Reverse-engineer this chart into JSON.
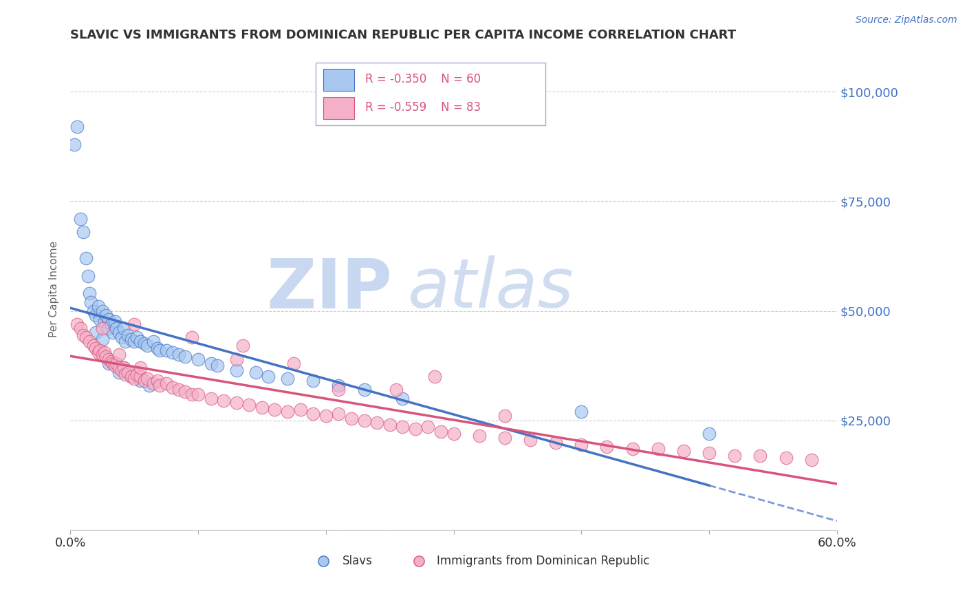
{
  "title": "SLAVIC VS IMMIGRANTS FROM DOMINICAN REPUBLIC PER CAPITA INCOME CORRELATION CHART",
  "source_text": "Source: ZipAtlas.com",
  "ylabel": "Per Capita Income",
  "xlim": [
    0.0,
    0.6
  ],
  "ylim": [
    0,
    110000
  ],
  "ytick_positions": [
    0,
    25000,
    50000,
    75000,
    100000
  ],
  "ytick_labels": [
    "",
    "$25,000",
    "$50,000",
    "$75,000",
    "$100,000"
  ],
  "xtick_positions": [
    0.0,
    0.1,
    0.2,
    0.3,
    0.4,
    0.5,
    0.6
  ],
  "xtick_labels": [
    "0.0%",
    "",
    "",
    "",
    "",
    "",
    "60.0%"
  ],
  "blue_R": -0.35,
  "blue_N": 60,
  "pink_R": -0.559,
  "pink_N": 83,
  "blue_color": "#a8c8f0",
  "pink_color": "#f4b0c8",
  "blue_line_color": "#4472c4",
  "pink_line_color": "#d9547a",
  "axis_label_color": "#4472c4",
  "watermark_ZIP_color": "#c8d8f0",
  "watermark_atlas_color": "#d0ddf0",
  "blue_scatter_x": [
    0.003,
    0.005,
    0.008,
    0.01,
    0.012,
    0.014,
    0.015,
    0.016,
    0.018,
    0.02,
    0.022,
    0.023,
    0.025,
    0.027,
    0.028,
    0.03,
    0.03,
    0.032,
    0.033,
    0.035,
    0.036,
    0.038,
    0.04,
    0.042,
    0.043,
    0.045,
    0.048,
    0.05,
    0.052,
    0.055,
    0.058,
    0.06,
    0.065,
    0.068,
    0.07,
    0.075,
    0.08,
    0.085,
    0.09,
    0.1,
    0.11,
    0.115,
    0.13,
    0.145,
    0.155,
    0.17,
    0.19,
    0.21,
    0.23,
    0.26,
    0.02,
    0.025,
    0.03,
    0.038,
    0.042,
    0.048,
    0.055,
    0.062,
    0.4,
    0.5
  ],
  "blue_scatter_y": [
    88000,
    92000,
    71000,
    68000,
    62000,
    58000,
    54000,
    52000,
    50000,
    49000,
    51000,
    48000,
    50000,
    47500,
    49000,
    48000,
    46000,
    47000,
    45000,
    47500,
    46000,
    45000,
    44000,
    46000,
    43000,
    44500,
    43500,
    43000,
    44000,
    43000,
    42500,
    42000,
    43000,
    41500,
    41000,
    41000,
    40500,
    40000,
    39500,
    39000,
    38000,
    37500,
    36500,
    36000,
    35000,
    34500,
    34000,
    33000,
    32000,
    30000,
    45000,
    43500,
    38000,
    36000,
    37000,
    35000,
    34000,
    33000,
    27000,
    22000
  ],
  "pink_scatter_x": [
    0.005,
    0.008,
    0.01,
    0.012,
    0.015,
    0.018,
    0.02,
    0.022,
    0.023,
    0.025,
    0.027,
    0.028,
    0.03,
    0.032,
    0.033,
    0.035,
    0.036,
    0.038,
    0.04,
    0.042,
    0.043,
    0.045,
    0.048,
    0.05,
    0.052,
    0.055,
    0.058,
    0.06,
    0.065,
    0.068,
    0.07,
    0.075,
    0.08,
    0.085,
    0.09,
    0.095,
    0.1,
    0.11,
    0.12,
    0.13,
    0.14,
    0.15,
    0.16,
    0.17,
    0.18,
    0.19,
    0.2,
    0.21,
    0.22,
    0.23,
    0.24,
    0.25,
    0.26,
    0.27,
    0.28,
    0.29,
    0.3,
    0.32,
    0.34,
    0.36,
    0.38,
    0.4,
    0.42,
    0.44,
    0.46,
    0.48,
    0.5,
    0.52,
    0.54,
    0.56,
    0.58,
    0.025,
    0.038,
    0.055,
    0.095,
    0.175,
    0.255,
    0.34,
    0.135,
    0.285,
    0.05,
    0.13,
    0.21
  ],
  "pink_scatter_y": [
    47000,
    46000,
    44500,
    44000,
    43000,
    42000,
    41500,
    40500,
    41000,
    40000,
    40500,
    39500,
    39000,
    38500,
    38000,
    37500,
    38000,
    37000,
    36500,
    37000,
    35500,
    36000,
    35000,
    34500,
    35500,
    35000,
    34000,
    34500,
    33500,
    34000,
    33000,
    33500,
    32500,
    32000,
    31500,
    31000,
    31000,
    30000,
    29500,
    29000,
    28500,
    28000,
    27500,
    27000,
    27500,
    26500,
    26000,
    26500,
    25500,
    25000,
    24500,
    24000,
    23500,
    23000,
    23500,
    22500,
    22000,
    21500,
    21000,
    20500,
    20000,
    19500,
    19000,
    18500,
    18500,
    18000,
    17500,
    17000,
    17000,
    16500,
    16000,
    46000,
    40000,
    37000,
    44000,
    38000,
    32000,
    26000,
    42000,
    35000,
    47000,
    39000,
    32000
  ]
}
